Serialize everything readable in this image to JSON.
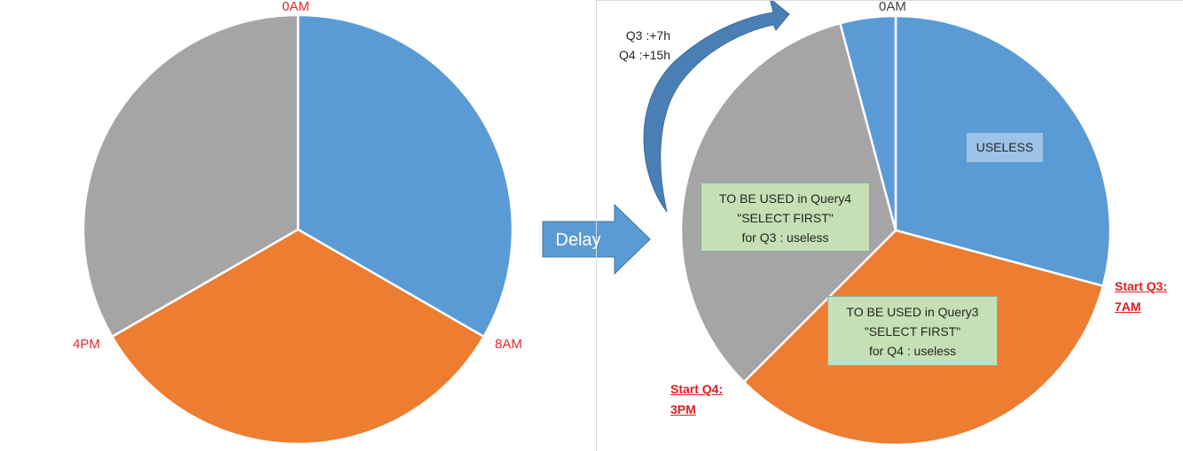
{
  "left_pie": {
    "labels": {
      "top": "0AM",
      "right": "8AM",
      "left": "4PM"
    },
    "slices": [
      {
        "fraction": 0.3333,
        "color": "#5b9bd5"
      },
      {
        "fraction": 0.3334,
        "color": "#ed7d31"
      },
      {
        "fraction": 0.3333,
        "color": "#a5a5a5"
      }
    ]
  },
  "arrow": {
    "label": "Delay",
    "color": "#5b9bd5"
  },
  "curved_arrow": {
    "color": "#4a7fb5",
    "lines": [
      "Q3 :+7h",
      "Q4 :+15h"
    ]
  },
  "right_pie": {
    "top_label": "0AM",
    "slices": [
      {
        "fraction": 0.2917,
        "color": "#5b9bd5"
      },
      {
        "fraction": 0.3333,
        "color": "#ed7d31"
      },
      {
        "fraction": 0.3333,
        "color": "#a5a5a5"
      },
      {
        "fraction": 0.0417,
        "color": "#5b9bd5"
      }
    ],
    "start_q3": {
      "line1": "Start Q3:",
      "line2": "7AM"
    },
    "start_q4": {
      "line1": "Start Q4:",
      "line2": "3PM"
    },
    "useless_box": "USELESS",
    "query4_box": {
      "line1": "TO BE USED in Query4",
      "line2": "\"SELECT FIRST\"",
      "line3": "for Q3 : useless"
    },
    "query3_box": {
      "line1": "TO BE USED in Query3",
      "line2": "\"SELECT FIRST\"",
      "line3": "for Q4 : useless"
    }
  }
}
